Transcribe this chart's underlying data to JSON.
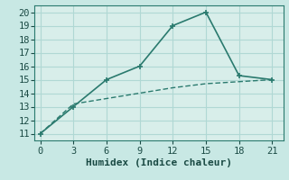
{
  "xlabel": "Humidex (Indice chaleur)",
  "line1_x": [
    0,
    3,
    6,
    9,
    12,
    15,
    18,
    21
  ],
  "line1_y": [
    11,
    13,
    15,
    16,
    19,
    20,
    15.3,
    15
  ],
  "line2_x": [
    0,
    3,
    6,
    9,
    12,
    15,
    18,
    21
  ],
  "line2_y": [
    11,
    13.2,
    13.6,
    14.0,
    14.4,
    14.7,
    14.85,
    15
  ],
  "line_color": "#2a7a6e",
  "bg_color": "#c8e8e4",
  "plot_bg_color": "#d8eeea",
  "grid_color": "#b0d8d4",
  "xlim": [
    -0.5,
    22
  ],
  "ylim": [
    10.5,
    20.5
  ],
  "xticks": [
    0,
    3,
    6,
    9,
    12,
    15,
    18,
    21
  ],
  "yticks": [
    11,
    12,
    13,
    14,
    15,
    16,
    17,
    18,
    19,
    20
  ],
  "marker1": "+",
  "marker_size1": 5,
  "marker2": "None",
  "marker_size2": 0,
  "linewidth1": 1.2,
  "linewidth2": 1.0,
  "xlabel_fontsize": 8,
  "tick_fontsize": 7.5
}
